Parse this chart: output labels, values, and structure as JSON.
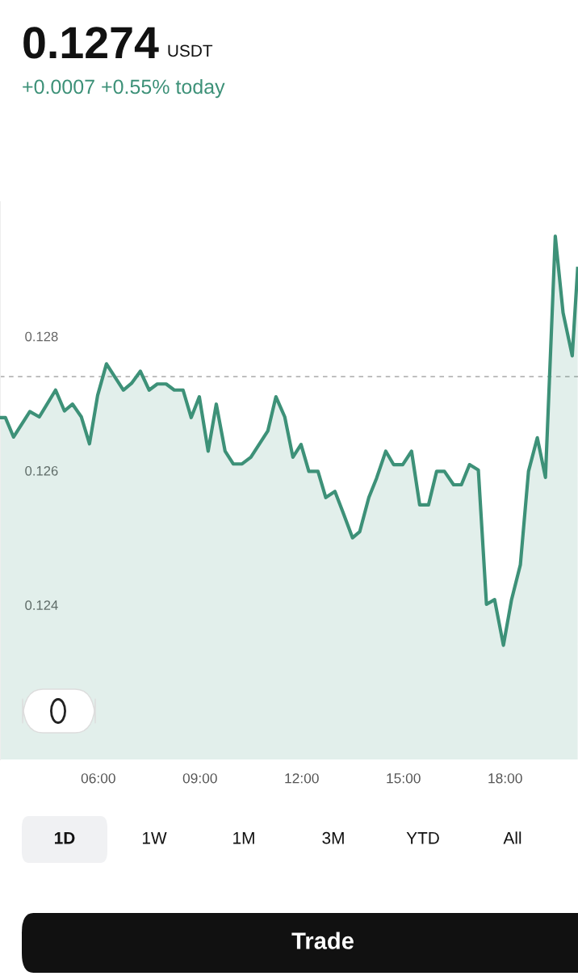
{
  "chart_data": {
    "type": "area",
    "title": "0.1274",
    "subtitle": "+0.0007 +0.55% today",
    "annotations": [
      "USDT",
      "1D",
      "1W",
      "1M",
      "3M",
      "YTD",
      "All",
      "Trade"
    ],
    "series": [
      {
        "color": "#3d9178",
        "x": [
          3.1,
          3.26,
          3.5,
          3.98,
          4.26,
          4.74,
          5.0,
          5.24,
          5.5,
          5.74,
          5.98,
          6.24,
          6.74,
          6.98,
          7.24,
          7.5,
          7.74,
          8.0,
          8.24,
          8.5,
          8.74,
          8.98,
          9.24,
          9.48,
          9.74,
          9.98,
          10.24,
          10.5,
          11.0,
          11.24,
          11.5,
          11.74,
          11.98,
          12.21,
          12.48,
          12.71,
          12.98,
          13.21,
          13.5,
          13.71,
          13.98,
          14.21,
          14.48,
          14.71,
          14.98,
          15.24,
          15.48,
          15.74,
          15.98,
          16.21,
          16.48,
          16.71,
          16.95,
          17.21,
          17.45,
          17.69,
          17.95,
          18.19,
          18.45,
          18.69,
          18.95,
          19.19,
          19.48,
          19.71,
          19.98,
          20.14
        ],
        "values": [
          0.12679,
          0.12679,
          0.1265,
          0.12688,
          0.1268,
          0.1272,
          0.12689,
          0.12699,
          0.1268,
          0.1264,
          0.12712,
          0.12759,
          0.1272,
          0.1273,
          0.12748,
          0.1272,
          0.12729,
          0.12729,
          0.1272,
          0.1272,
          0.12679,
          0.1271,
          0.12629,
          0.12699,
          0.12629,
          0.1261,
          0.1261,
          0.1262,
          0.12659,
          0.1271,
          0.1268,
          0.1262,
          0.12639,
          0.12599,
          0.12599,
          0.1256,
          0.12569,
          0.12539,
          0.125,
          0.12509,
          0.1256,
          0.12589,
          0.12629,
          0.12609,
          0.12609,
          0.12629,
          0.12549,
          0.12549,
          0.12599,
          0.12599,
          0.12579,
          0.12579,
          0.12609,
          0.12601,
          0.12401,
          0.12408,
          0.1234,
          0.12408,
          0.1246,
          0.12599,
          0.12649,
          0.1259,
          0.12949,
          0.12835,
          0.12771,
          0.12901
        ]
      }
    ],
    "xlim": [
      3.1,
      20.15
    ],
    "xticks": [
      {
        "value": 6,
        "label": "06:00"
      },
      {
        "value": 9,
        "label": "09:00"
      },
      {
        "value": 12,
        "label": "12:00"
      },
      {
        "value": 15,
        "label": "15:00"
      },
      {
        "value": 18,
        "label": "18:00"
      }
    ],
    "ylim": [
      0.1217,
      0.13
    ],
    "yticks": [
      0.124,
      0.126,
      0.128
    ],
    "ref_lines": [
      {
        "axis": "y",
        "value": 0.1274,
        "color": "#999999",
        "line_style": "dashed"
      }
    ],
    "grid": false
  }
}
